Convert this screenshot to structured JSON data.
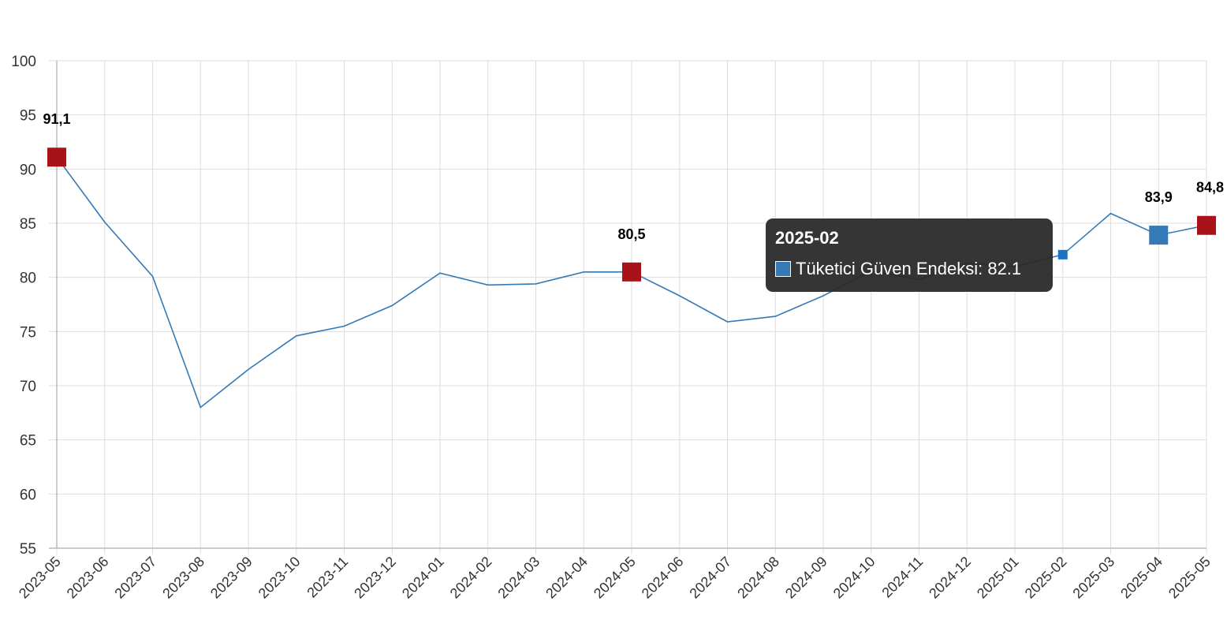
{
  "chart_data": {
    "type": "line",
    "title": "",
    "xlabel": "",
    "ylabel": "",
    "ylim": [
      55,
      100
    ],
    "y_ticks": [
      55,
      60,
      65,
      70,
      75,
      80,
      85,
      90,
      95,
      100
    ],
    "grid": true,
    "categories": [
      "2023-05",
      "2023-06",
      "2023-07",
      "2023-08",
      "2023-09",
      "2023-10",
      "2023-11",
      "2023-12",
      "2024-01",
      "2024-02",
      "2024-03",
      "2024-04",
      "2024-05",
      "2024-06",
      "2024-07",
      "2024-08",
      "2024-09",
      "2024-10",
      "2024-11",
      "2024-12",
      "2025-01",
      "2025-02",
      "2025-03",
      "2025-04",
      "2025-05"
    ],
    "series": [
      {
        "name": "Tüketici Güven Endeksi",
        "color": "#337ab7",
        "values": [
          91.1,
          85.1,
          80.1,
          68.0,
          71.5,
          74.6,
          75.5,
          77.4,
          80.4,
          79.3,
          79.4,
          80.5,
          80.5,
          78.3,
          75.9,
          76.4,
          78.3,
          80.6,
          79.8,
          81.3,
          81.0,
          82.1,
          85.9,
          83.9,
          84.8
        ]
      }
    ],
    "highlighted_points": [
      {
        "category": "2023-05",
        "value": 91.1,
        "label": "91,1",
        "color": "#a8131a"
      },
      {
        "category": "2024-05",
        "value": 80.5,
        "label": "80,5",
        "color": "#a8131a"
      },
      {
        "category": "2025-04",
        "value": 83.9,
        "label": "83,9",
        "color": "#337ab7"
      },
      {
        "category": "2025-05",
        "value": 84.8,
        "label": "84,8",
        "color": "#a8131a"
      }
    ],
    "hover_point": {
      "category": "2025-02",
      "value": 82.1,
      "color": "#1a73c4"
    }
  },
  "tooltip": {
    "title": "2025-02",
    "series_label": "Tüketici Güven Endeksi: 82.1"
  }
}
